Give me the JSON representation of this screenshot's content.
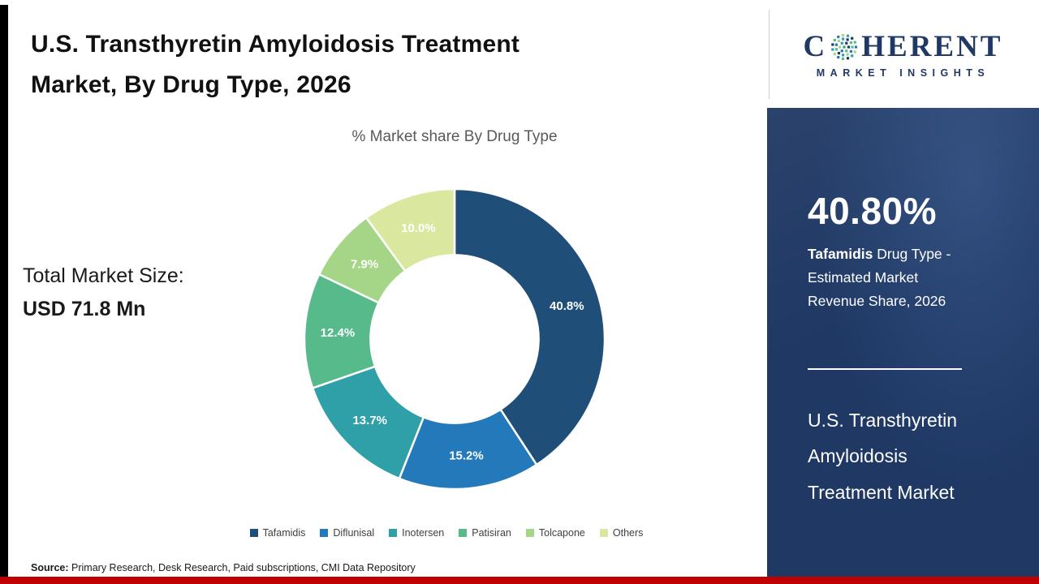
{
  "page": {
    "title": "U.S. Transthyretin Amyloidosis Treatment Market, By Drug Type, 2026"
  },
  "chart_data": {
    "type": "pie",
    "donut": true,
    "title": "% Market share By Drug Type",
    "categories": [
      "Tafamidis",
      "Diflunisal",
      "Inotersen",
      "Patisiran",
      "Tolcapone",
      "Others"
    ],
    "values": [
      40.8,
      15.2,
      13.7,
      12.4,
      7.9,
      10.0
    ],
    "labels": [
      "40.8%",
      "15.2%",
      "13.7%",
      "12.4%",
      "7.9%",
      "10.0%"
    ],
    "colors": [
      "#1f4e79",
      "#2379b9",
      "#2f9fa8",
      "#57ba8b",
      "#a5d687",
      "#d9e79f"
    ],
    "start_angle_deg": 0,
    "direction": "clockwise",
    "legend_position": "bottom",
    "inner_radius_ratio": 0.56,
    "label_color": "#ffffff"
  },
  "stats": {
    "total_label": "Total Market Size:",
    "total_value": "USD 71.8 Mn"
  },
  "sidebar": {
    "stat_value": "40.80%",
    "stat_desc_bold": "Tafamidis",
    "stat_desc_rest": " Drug Type - Estimated Market Revenue Share, 2026",
    "market_name": "U.S. Transthyretin Amyloidosis Treatment Market",
    "bg_color": "#1f3864"
  },
  "logo": {
    "prefix": "C",
    "suffix": "HERENT",
    "subtext": "MARKET INSIGHTS",
    "brand_color": "#1f3864",
    "mosaic_colors": [
      "#2f9fa8",
      "#1f3864",
      "#57ba8b",
      "#2e75b6",
      "#a5d687"
    ]
  },
  "footer": {
    "source_label": "Source:",
    "source_text": " Primary Research, Desk Research, Paid subscriptions, CMI Data Repository",
    "bar_color": "#c00000"
  }
}
